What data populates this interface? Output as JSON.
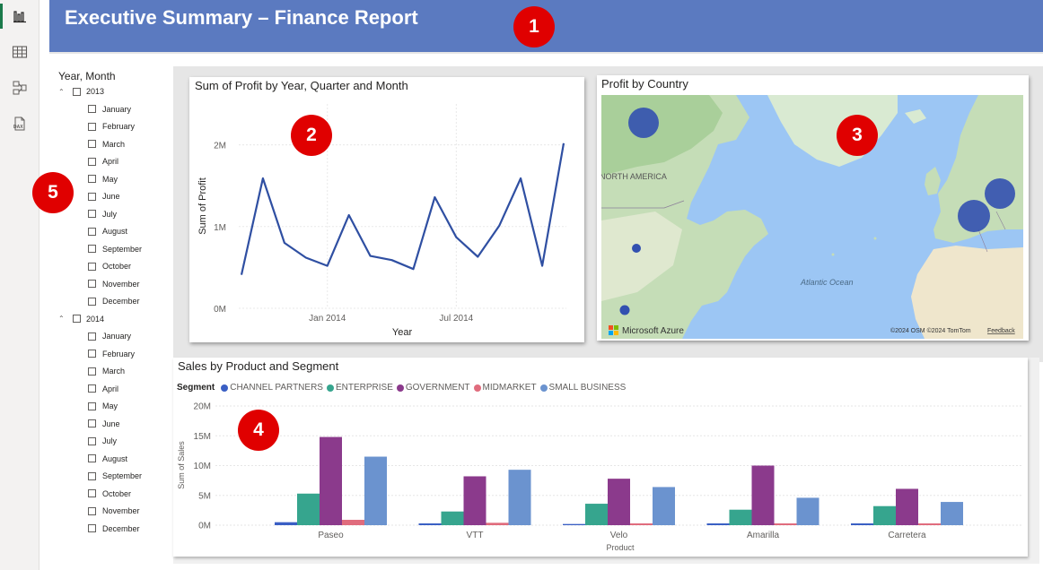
{
  "banner": {
    "title": "Executive Summary – Finance Report"
  },
  "badges": [
    "1",
    "2",
    "3",
    "4",
    "5"
  ],
  "rail": {
    "icons": [
      "report-view-icon",
      "table-view-icon",
      "model-view-icon",
      "dax-query-icon"
    ]
  },
  "slicer": {
    "title": "Year, Month",
    "years": [
      {
        "year": "2013",
        "months": [
          "January",
          "February",
          "March",
          "April",
          "May",
          "June",
          "July",
          "August",
          "September",
          "October",
          "November",
          "December"
        ]
      },
      {
        "year": "2014",
        "months": [
          "January",
          "February",
          "March",
          "April",
          "May",
          "June",
          "July",
          "August",
          "September",
          "October",
          "November",
          "December"
        ]
      }
    ]
  },
  "line_chart": {
    "title": "Sum of Profit by Year, Quarter and Month",
    "ylabel": "Sum of Profit",
    "xlabel": "Year",
    "yticks": [
      "2M",
      "1M",
      "0M"
    ],
    "xticks": [
      "Jan 2014",
      "Jul 2014"
    ]
  },
  "map": {
    "title": "Profit by Country",
    "labels": {
      "north_america": "NORTH AMERICA",
      "atlantic": "Atlantic Ocean"
    },
    "logo": "Microsoft Azure",
    "attribution": "©2024 OSM  ©2024 TomTom",
    "feedback": "Feedback"
  },
  "bar_chart": {
    "title": "Sales by Product and Segment",
    "legend_title": "Segment",
    "xlabel": "Product",
    "ylabel": "Sum of Sales",
    "yticks": [
      "20M",
      "15M",
      "10M",
      "5M",
      "0M"
    ]
  },
  "colors": {
    "banner": "#5b7ac0",
    "line": "#2f4fa2",
    "badge": "#e00000",
    "seg_channel": "#3a5fc4",
    "seg_enterprise": "#36a58e",
    "seg_government": "#8b3a8c",
    "seg_midmarket": "#e06c7d",
    "seg_small": "#6b93cf"
  },
  "chart_data": [
    {
      "type": "line",
      "title": "Sum of Profit by Year, Quarter and Month",
      "xlabel": "Year",
      "ylabel": "Sum of Profit",
      "x": [
        "2013-09",
        "2013-10",
        "2013-11",
        "2013-12",
        "2014-01",
        "2014-02",
        "2014-03",
        "2014-04",
        "2014-05",
        "2014-06",
        "2014-07",
        "2014-08",
        "2014-09",
        "2014-10",
        "2014-11",
        "2014-12"
      ],
      "values": [
        0.41,
        1.59,
        0.8,
        0.62,
        0.52,
        1.14,
        0.64,
        0.59,
        0.48,
        1.36,
        0.87,
        0.63,
        1.01,
        1.59,
        0.52,
        2.02
      ],
      "ylim": [
        0,
        2.5
      ],
      "unit": "M",
      "grid": true
    },
    {
      "type": "bar",
      "title": "Sales by Product and Segment",
      "xlabel": "Product",
      "ylabel": "Sum of Sales",
      "legend_title": "Segment",
      "legend_position": "top-left",
      "categories": [
        "Paseo",
        "VTT",
        "Velo",
        "Amarilla",
        "Carretera"
      ],
      "series": [
        {
          "name": "CHANNEL PARTNERS",
          "values": [
            0.5,
            0.3,
            0.2,
            0.3,
            0.3
          ]
        },
        {
          "name": "ENTERPRISE",
          "values": [
            5.3,
            2.3,
            3.6,
            2.6,
            3.2
          ]
        },
        {
          "name": "GOVERNMENT",
          "values": [
            14.8,
            8.2,
            7.8,
            10.0,
            6.1
          ]
        },
        {
          "name": "MIDMARKET",
          "values": [
            0.9,
            0.4,
            0.3,
            0.3,
            0.3
          ]
        },
        {
          "name": "SMALL BUSINESS",
          "values": [
            11.5,
            9.3,
            6.4,
            4.6,
            3.9
          ]
        }
      ],
      "ylim": [
        0,
        20
      ],
      "unit": "M",
      "grid": true
    }
  ]
}
